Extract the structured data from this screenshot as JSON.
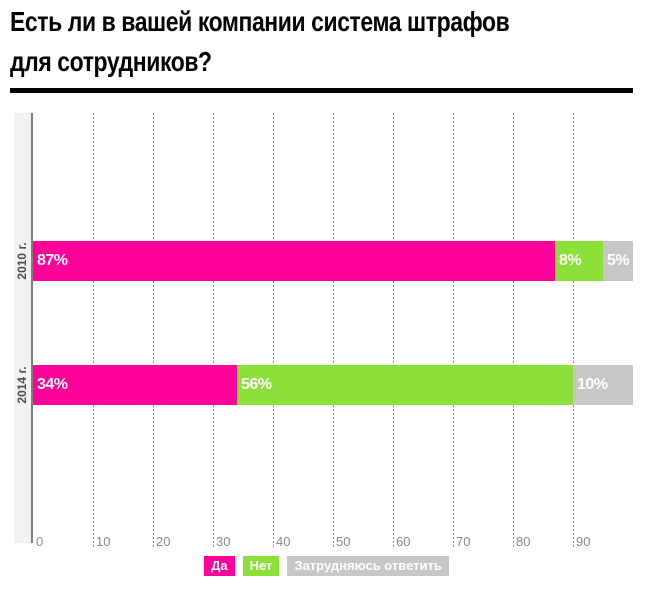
{
  "header": {
    "title_line1": "Есть ли в вашей компании система штрафов",
    "title_line2": "для сотрудников?"
  },
  "chart_data": {
    "type": "bar",
    "orientation": "horizontal",
    "stacked": true,
    "title": "Есть ли в вашей компании система штрафов для сотрудников?",
    "categories": [
      "2010 г.",
      "2014 г."
    ],
    "series": [
      {
        "name": "Да",
        "color": "#ff0099",
        "values": [
          87,
          34
        ]
      },
      {
        "name": "Нет",
        "color": "#8ce03a",
        "values": [
          8,
          56
        ]
      },
      {
        "name": "Затрудняюсь ответить",
        "color": "#c7c7c7",
        "values": [
          5,
          10
        ]
      }
    ],
    "value_labels": [
      [
        "87%",
        "8%",
        "5%"
      ],
      [
        "34%",
        "56%",
        "10%"
      ]
    ],
    "xlim": [
      0,
      100
    ],
    "xticks": [
      0,
      10,
      20,
      30,
      40,
      50,
      60,
      70,
      80,
      90
    ],
    "grid": "vertical-dotted",
    "legend_position": "bottom",
    "colors": {
      "background": "#ffffff",
      "title_rule": "#000000",
      "axis_line": "#7d7d7d",
      "gridline": "#8f8f8f",
      "tick_text": "#8a8a8a",
      "category_text": "#4d4d4d",
      "category_strip": "#f2f2f2",
      "bar_label_text": "#ffffff"
    }
  }
}
